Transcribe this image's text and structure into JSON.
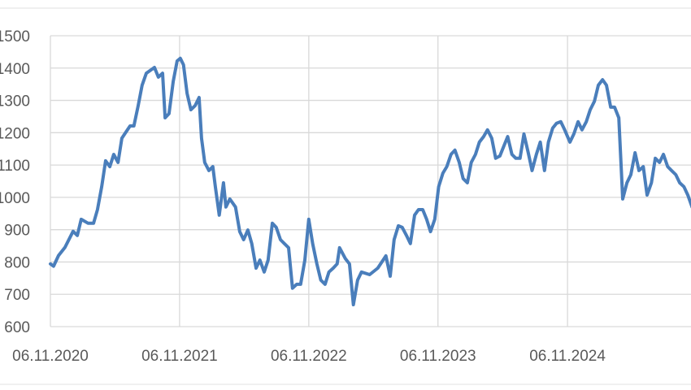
{
  "chart_data": {
    "type": "line",
    "title": "",
    "xlabel": "",
    "ylabel": "",
    "ylim": [
      600,
      1500
    ],
    "yticks": [
      600,
      700,
      800,
      900,
      1000,
      1100,
      1200,
      1300,
      1400,
      1500
    ],
    "xlim": [
      "2020-11-06",
      "2025-11-06"
    ],
    "xticks": [
      "2020-11-06",
      "2021-11-06",
      "2022-11-06",
      "2023-11-06",
      "2024-11-06"
    ],
    "xtick_labels": [
      "06.11.2020",
      "06.11.2021",
      "06.11.2022",
      "06.11.2023",
      "06.11.2024"
    ],
    "grid": true,
    "line_color": "#4a7ebb",
    "grid_color": "#d9d9d9",
    "series": [
      {
        "points": [
          [
            "2020-11-06",
            794
          ],
          [
            "2020-11-15",
            787
          ],
          [
            "2020-11-29",
            820
          ],
          [
            "2020-12-17",
            845
          ],
          [
            "2021-01-09",
            895
          ],
          [
            "2021-01-21",
            882
          ],
          [
            "2021-02-01",
            932
          ],
          [
            "2021-02-20",
            920
          ],
          [
            "2021-03-08",
            920
          ],
          [
            "2021-03-19",
            962
          ],
          [
            "2021-03-31",
            1033
          ],
          [
            "2021-04-11",
            1113
          ],
          [
            "2021-04-23",
            1095
          ],
          [
            "2021-05-04",
            1133
          ],
          [
            "2021-05-16",
            1108
          ],
          [
            "2021-05-27",
            1183
          ],
          [
            "2021-06-08",
            1203
          ],
          [
            "2021-06-19",
            1221
          ],
          [
            "2021-06-30",
            1221
          ],
          [
            "2021-07-12",
            1284
          ],
          [
            "2021-07-23",
            1347
          ],
          [
            "2021-08-04",
            1384
          ],
          [
            "2021-08-27",
            1402
          ],
          [
            "2021-09-07",
            1372
          ],
          [
            "2021-09-19",
            1384
          ],
          [
            "2021-09-26",
            1246
          ],
          [
            "2021-10-07",
            1259
          ],
          [
            "2021-10-19",
            1359
          ],
          [
            "2021-10-30",
            1422
          ],
          [
            "2021-11-08",
            1430
          ],
          [
            "2021-11-17",
            1410
          ],
          [
            "2021-11-27",
            1322
          ],
          [
            "2021-12-08",
            1271
          ],
          [
            "2021-12-20",
            1284
          ],
          [
            "2021-12-31",
            1309
          ],
          [
            "2022-01-07",
            1183
          ],
          [
            "2022-01-16",
            1108
          ],
          [
            "2022-01-28",
            1083
          ],
          [
            "2022-02-08",
            1095
          ],
          [
            "2022-02-15",
            1033
          ],
          [
            "2022-02-26",
            945
          ],
          [
            "2022-03-10",
            1045
          ],
          [
            "2022-03-17",
            970
          ],
          [
            "2022-03-28",
            995
          ],
          [
            "2022-04-13",
            970
          ],
          [
            "2022-04-25",
            894
          ],
          [
            "2022-05-06",
            869
          ],
          [
            "2022-05-18",
            899
          ],
          [
            "2022-05-29",
            857
          ],
          [
            "2022-06-10",
            781
          ],
          [
            "2022-06-21",
            806
          ],
          [
            "2022-07-03",
            769
          ],
          [
            "2022-07-14",
            806
          ],
          [
            "2022-07-26",
            920
          ],
          [
            "2022-08-06",
            907
          ],
          [
            "2022-08-18",
            869
          ],
          [
            "2022-08-29",
            857
          ],
          [
            "2022-09-10",
            844
          ],
          [
            "2022-09-21",
            719
          ],
          [
            "2022-10-03",
            731
          ],
          [
            "2022-10-14",
            731
          ],
          [
            "2022-10-26",
            806
          ],
          [
            "2022-11-06",
            932
          ],
          [
            "2022-11-17",
            857
          ],
          [
            "2022-11-29",
            794
          ],
          [
            "2022-12-10",
            744
          ],
          [
            "2022-12-22",
            731
          ],
          [
            "2023-01-02",
            769
          ],
          [
            "2023-01-14",
            781
          ],
          [
            "2023-01-25",
            794
          ],
          [
            "2023-02-01",
            844
          ],
          [
            "2023-02-17",
            811
          ],
          [
            "2023-03-01",
            794
          ],
          [
            "2023-03-12",
            668
          ],
          [
            "2023-03-24",
            744
          ],
          [
            "2023-04-04",
            769
          ],
          [
            "2023-04-27",
            761
          ],
          [
            "2023-05-20",
            781
          ],
          [
            "2023-06-12",
            819
          ],
          [
            "2023-06-24",
            756
          ],
          [
            "2023-07-05",
            869
          ],
          [
            "2023-07-17",
            912
          ],
          [
            "2023-07-28",
            907
          ],
          [
            "2023-08-09",
            882
          ],
          [
            "2023-08-20",
            857
          ],
          [
            "2023-09-01",
            945
          ],
          [
            "2023-09-12",
            962
          ],
          [
            "2023-09-24",
            962
          ],
          [
            "2023-10-05",
            932
          ],
          [
            "2023-10-16",
            894
          ],
          [
            "2023-10-28",
            932
          ],
          [
            "2023-11-08",
            1033
          ],
          [
            "2023-11-20",
            1075
          ],
          [
            "2023-12-01",
            1095
          ],
          [
            "2023-12-13",
            1133
          ],
          [
            "2023-12-24",
            1146
          ],
          [
            "2024-01-05",
            1108
          ],
          [
            "2024-01-16",
            1058
          ],
          [
            "2024-01-28",
            1045
          ],
          [
            "2024-02-08",
            1108
          ],
          [
            "2024-02-20",
            1133
          ],
          [
            "2024-03-02",
            1171
          ],
          [
            "2024-03-14",
            1188
          ],
          [
            "2024-03-25",
            1209
          ],
          [
            "2024-04-06",
            1183
          ],
          [
            "2024-04-17",
            1121
          ],
          [
            "2024-04-29",
            1128
          ],
          [
            "2024-05-10",
            1158
          ],
          [
            "2024-05-21",
            1188
          ],
          [
            "2024-06-02",
            1133
          ],
          [
            "2024-06-13",
            1121
          ],
          [
            "2024-06-25",
            1121
          ],
          [
            "2024-07-06",
            1196
          ],
          [
            "2024-07-18",
            1138
          ],
          [
            "2024-07-29",
            1083
          ],
          [
            "2024-08-10",
            1133
          ],
          [
            "2024-08-21",
            1171
          ],
          [
            "2024-09-02",
            1083
          ],
          [
            "2024-09-13",
            1171
          ],
          [
            "2024-09-25",
            1214
          ],
          [
            "2024-10-06",
            1229
          ],
          [
            "2024-10-18",
            1234
          ],
          [
            "2024-10-29",
            1209
          ],
          [
            "2024-11-13",
            1171
          ],
          [
            "2024-11-24",
            1196
          ],
          [
            "2024-12-06",
            1234
          ],
          [
            "2024-12-17",
            1209
          ],
          [
            "2024-12-29",
            1234
          ],
          [
            "2025-01-09",
            1271
          ],
          [
            "2025-01-21",
            1297
          ],
          [
            "2025-02-01",
            1347
          ],
          [
            "2025-02-13",
            1364
          ],
          [
            "2025-02-24",
            1347
          ],
          [
            "2025-03-08",
            1279
          ],
          [
            "2025-03-19",
            1279
          ],
          [
            "2025-03-31",
            1246
          ],
          [
            "2025-04-11",
            995
          ],
          [
            "2025-04-23",
            1045
          ],
          [
            "2025-05-04",
            1070
          ],
          [
            "2025-05-16",
            1138
          ],
          [
            "2025-05-27",
            1083
          ],
          [
            "2025-06-08",
            1095
          ],
          [
            "2025-06-19",
            1007
          ],
          [
            "2025-07-01",
            1045
          ],
          [
            "2025-07-12",
            1121
          ],
          [
            "2025-07-24",
            1108
          ],
          [
            "2025-08-04",
            1133
          ],
          [
            "2025-08-16",
            1095
          ],
          [
            "2025-08-27",
            1083
          ],
          [
            "2025-09-08",
            1070
          ],
          [
            "2025-09-19",
            1045
          ],
          [
            "2025-10-01",
            1033
          ],
          [
            "2025-10-12",
            1007
          ],
          [
            "2025-10-24",
            970
          ]
        ]
      }
    ]
  }
}
